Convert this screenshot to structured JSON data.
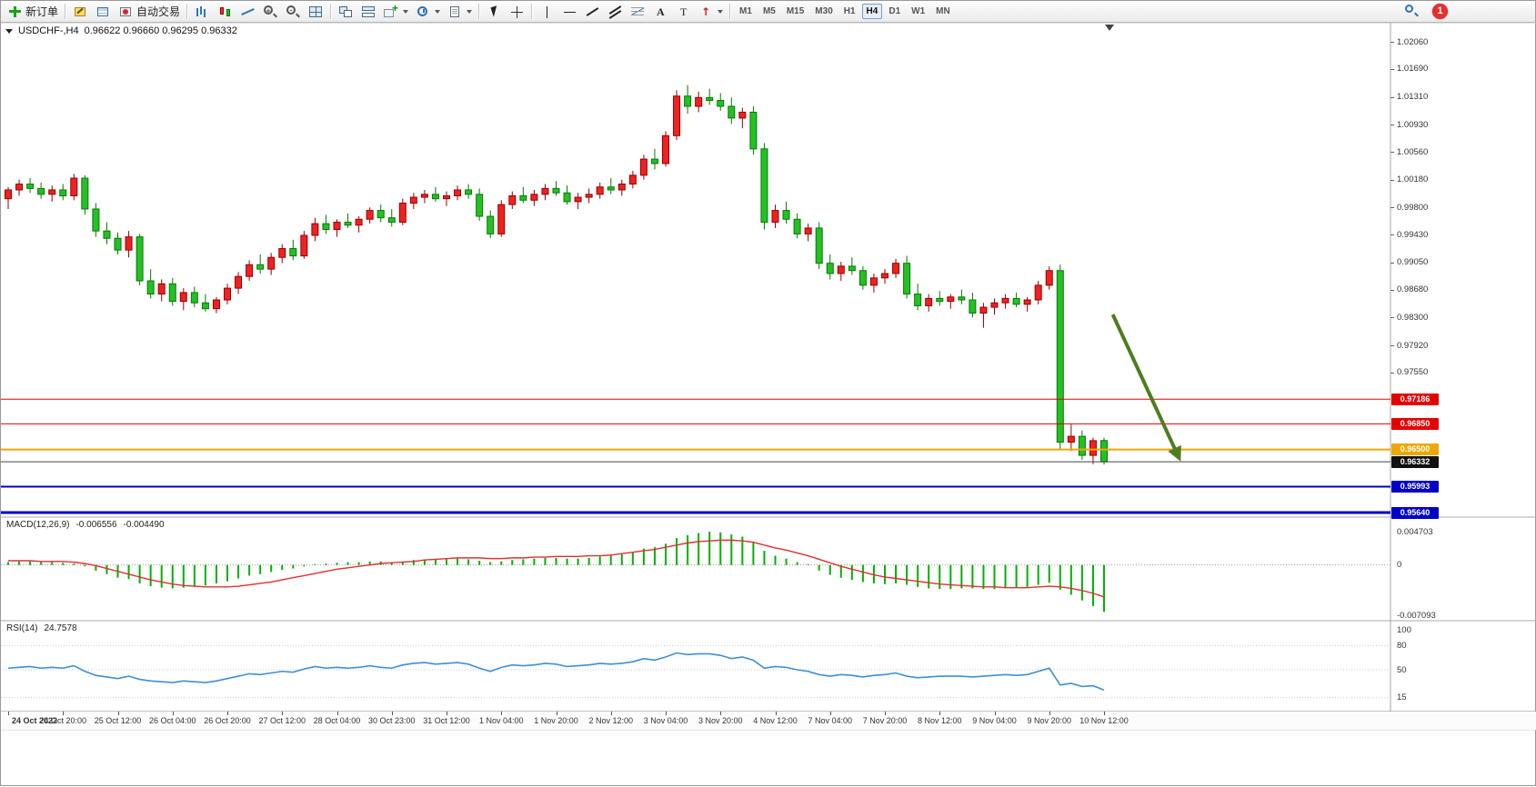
{
  "toolbar": {
    "notification_count": "1",
    "groups": [
      {
        "items": [
          {
            "name": "new-order",
            "label": "新订单",
            "icon": "neworder"
          }
        ]
      },
      {
        "items": [
          {
            "name": "metaeditor",
            "icon": "metaeditor"
          },
          {
            "name": "data-window",
            "icon": "datawindow"
          },
          {
            "name": "autotrading",
            "label": "自动交易",
            "icon": "autotrading"
          }
        ]
      },
      {
        "items": [
          {
            "name": "bar-chart",
            "icon": "barchart"
          },
          {
            "name": "candlestick-chart",
            "icon": "candle"
          },
          {
            "name": "line-chart",
            "icon": "linechart"
          },
          {
            "name": "zoom-in",
            "icon": "zoomin"
          },
          {
            "name": "zoom-out",
            "icon": "zoomout"
          },
          {
            "name": "tile-windows",
            "icon": "tile"
          }
        ]
      },
      {
        "items": [
          {
            "name": "cascade-windows",
            "icon": "cascade"
          },
          {
            "name": "arrange-charts",
            "icon": "arrange"
          },
          {
            "name": "add-indicator",
            "icon": "addind",
            "dropdown": true
          },
          {
            "name": "period-selector",
            "icon": "clock",
            "dropdown": true
          },
          {
            "name": "templates",
            "icon": "template",
            "dropdown": true
          }
        ]
      },
      {
        "items": [
          {
            "name": "cursor-tool",
            "icon": "cursor"
          },
          {
            "name": "crosshair-tool",
            "icon": "crosshair"
          }
        ]
      },
      {
        "items": [
          {
            "name": "vertical-line-tool",
            "icon": "vline"
          },
          {
            "name": "horizontal-line-tool",
            "icon": "hline"
          },
          {
            "name": "trendline-tool",
            "icon": "trend"
          },
          {
            "name": "channel-tool",
            "icon": "channel"
          },
          {
            "name": "fibonacci-tool",
            "icon": "fibo"
          },
          {
            "name": "text-tool",
            "icon": "text"
          },
          {
            "name": "label-tool",
            "icon": "label"
          },
          {
            "name": "arrows-tool",
            "icon": "arrows",
            "dropdown": true
          }
        ]
      }
    ],
    "timeframes": {
      "items": [
        "M1",
        "M5",
        "M15",
        "M30",
        "H1",
        "H4",
        "D1",
        "W1",
        "MN"
      ],
      "active": "H4"
    }
  },
  "chart_data": {
    "type": "candlestick",
    "title": "USDCHF-,H4",
    "ohlc_display": "0.96622 0.96660 0.96295 0.96332",
    "price_range": [
      0.9564,
      1.0206
    ],
    "colors": {
      "up": "#ee2222",
      "up_stroke": "#990000",
      "down": "#24c024",
      "down_stroke": "#057a05",
      "bid_line": "#444444"
    },
    "price_axis_labels": [
      "1.02060",
      "1.01690",
      "1.01310",
      "1.00930",
      "1.00560",
      "1.00180",
      "0.99800",
      "0.99430",
      "0.99050",
      "0.98680",
      "0.98300",
      "0.97920",
      "0.97550"
    ],
    "time_labels": [
      "24 Oct 2022",
      "24 Oct 20:00",
      "25 Oct 12:00",
      "26 Oct 04:00",
      "26 Oct 20:00",
      "27 Oct 12:00",
      "28 Oct 04:00",
      "30 Oct 23:00",
      "31 Oct 12:00",
      "1 Nov 04:00",
      "1 Nov 20:00",
      "2 Nov 12:00",
      "3 Nov 04:00",
      "3 Nov 20:00",
      "4 Nov 12:00",
      "7 Nov 04:00",
      "7 Nov 20:00",
      "8 Nov 12:00",
      "9 Nov 04:00",
      "9 Nov 20:00",
      "10 Nov 12:00"
    ],
    "hlines": [
      {
        "price": 0.97186,
        "label": "0.97186",
        "color": "#e60000",
        "width": 1,
        "badge": "#e60000"
      },
      {
        "price": 0.9685,
        "label": "0.96850",
        "color": "#e60000",
        "width": 1,
        "badge": "#e60000"
      },
      {
        "price": 0.965,
        "label": "0.96500",
        "color": "#efa700",
        "width": 2,
        "badge": "#efa700"
      },
      {
        "price": 0.96332,
        "label": "0.96332",
        "color": "#444444",
        "width": 1,
        "badge": "#111111"
      },
      {
        "price": 0.95993,
        "label": "0.95993",
        "color": "#0000c8",
        "width": 2,
        "badge": "#0000c8"
      },
      {
        "price": 0.9564,
        "label": "0.95640",
        "color": "#0000c8",
        "width": 3,
        "badge": "#0000c8"
      }
    ],
    "arrow_annotation": {
      "from_index": 100.8,
      "from_price": 0.9834,
      "to_index": 106.8,
      "to_price": 0.964,
      "color": "#4e7d1f"
    },
    "shift_marker_index": 100.5,
    "candles": [
      [
        0.9992,
        1.0008,
        0.9978,
        1.0004
      ],
      [
        1.0004,
        1.0018,
        0.9996,
        1.0012
      ],
      [
        1.0012,
        1.002,
        1.0,
        1.0006
      ],
      [
        1.0006,
        1.0014,
        0.9992,
        0.9998
      ],
      [
        0.9998,
        1.001,
        0.9988,
        1.0004
      ],
      [
        1.0004,
        1.0012,
        0.999,
        0.9996
      ],
      [
        0.9996,
        1.0026,
        0.999,
        1.002
      ],
      [
        1.002,
        1.0024,
        0.997,
        0.9978
      ],
      [
        0.9978,
        0.9986,
        0.994,
        0.9948
      ],
      [
        0.9948,
        0.996,
        0.993,
        0.9938
      ],
      [
        0.9938,
        0.9946,
        0.9916,
        0.9922
      ],
      [
        0.9922,
        0.9948,
        0.9912,
        0.994
      ],
      [
        0.994,
        0.9944,
        0.9874,
        0.988
      ],
      [
        0.988,
        0.9896,
        0.9856,
        0.9862
      ],
      [
        0.9862,
        0.9882,
        0.9852,
        0.9876
      ],
      [
        0.9876,
        0.9884,
        0.9846,
        0.9852
      ],
      [
        0.9852,
        0.987,
        0.984,
        0.9864
      ],
      [
        0.9864,
        0.9872,
        0.9844,
        0.985
      ],
      [
        0.985,
        0.9862,
        0.9838,
        0.9842
      ],
      [
        0.9842,
        0.9858,
        0.9836,
        0.9854
      ],
      [
        0.9854,
        0.9876,
        0.9848,
        0.987
      ],
      [
        0.987,
        0.9892,
        0.9862,
        0.9886
      ],
      [
        0.9886,
        0.9908,
        0.988,
        0.9902
      ],
      [
        0.9902,
        0.9916,
        0.989,
        0.9896
      ],
      [
        0.9896,
        0.9918,
        0.9888,
        0.9912
      ],
      [
        0.9912,
        0.993,
        0.9904,
        0.9924
      ],
      [
        0.9924,
        0.9936,
        0.9908,
        0.9914
      ],
      [
        0.9914,
        0.9948,
        0.991,
        0.9942
      ],
      [
        0.9942,
        0.9966,
        0.9934,
        0.9958
      ],
      [
        0.9958,
        0.997,
        0.9944,
        0.995
      ],
      [
        0.995,
        0.9964,
        0.994,
        0.996
      ],
      [
        0.996,
        0.9972,
        0.9952,
        0.9956
      ],
      [
        0.9956,
        0.9968,
        0.9946,
        0.9964
      ],
      [
        0.9964,
        0.998,
        0.9958,
        0.9976
      ],
      [
        0.9976,
        0.9984,
        0.996,
        0.9966
      ],
      [
        0.9966,
        0.9978,
        0.9954,
        0.996
      ],
      [
        0.996,
        0.9992,
        0.9956,
        0.9986
      ],
      [
        0.9986,
        1.0,
        0.9978,
        0.9994
      ],
      [
        0.9994,
        1.0004,
        0.9986,
        0.9998
      ],
      [
        0.9998,
        1.0008,
        0.9988,
        0.9992
      ],
      [
        0.9992,
        1.0002,
        0.9982,
        0.9996
      ],
      [
        0.9996,
        1.001,
        0.999,
        1.0004
      ],
      [
        1.0004,
        1.0012,
        0.9992,
        0.9998
      ],
      [
        0.9998,
        1.0006,
        0.9962,
        0.9968
      ],
      [
        0.9968,
        0.9976,
        0.9938,
        0.9944
      ],
      [
        0.9944,
        0.999,
        0.994,
        0.9984
      ],
      [
        0.9984,
        1.0002,
        0.9978,
        0.9996
      ],
      [
        0.9996,
        1.0008,
        0.9986,
        0.999
      ],
      [
        0.999,
        1.0004,
        0.9982,
        0.9998
      ],
      [
        0.9998,
        1.0012,
        0.999,
        1.0006
      ],
      [
        1.0006,
        1.0016,
        0.9996,
        1.0
      ],
      [
        1.0,
        1.001,
        0.9984,
        0.9988
      ],
      [
        0.9988,
        1.0,
        0.9978,
        0.9994
      ],
      [
        0.9994,
        1.0006,
        0.9986,
        0.9998
      ],
      [
        0.9998,
        1.0014,
        0.9992,
        1.0008
      ],
      [
        1.0008,
        1.002,
        0.9998,
        1.0004
      ],
      [
        1.0004,
        1.0018,
        0.9996,
        1.0012
      ],
      [
        1.0012,
        1.003,
        1.0006,
        1.0024
      ],
      [
        1.0024,
        1.0052,
        1.0018,
        1.0046
      ],
      [
        1.0046,
        1.006,
        1.0032,
        1.004
      ],
      [
        1.004,
        1.0084,
        1.0036,
        1.0078
      ],
      [
        1.0078,
        1.014,
        1.0072,
        1.0132
      ],
      [
        1.0132,
        1.0147,
        1.0108,
        1.0118
      ],
      [
        1.0118,
        1.0138,
        1.011,
        1.013
      ],
      [
        1.013,
        1.0142,
        1.012,
        1.0126
      ],
      [
        1.0126,
        1.0136,
        1.0112,
        1.0118
      ],
      [
        1.0118,
        1.013,
        1.0094,
        1.0102
      ],
      [
        1.0102,
        1.0116,
        1.0088,
        1.011
      ],
      [
        1.011,
        1.0118,
        1.0052,
        1.006
      ],
      [
        1.006,
        1.0068,
        0.995,
        0.996
      ],
      [
        0.996,
        0.9984,
        0.9952,
        0.9976
      ],
      [
        0.9976,
        0.9988,
        0.9958,
        0.9964
      ],
      [
        0.9964,
        0.9972,
        0.9938,
        0.9944
      ],
      [
        0.9944,
        0.9958,
        0.9934,
        0.9952
      ],
      [
        0.9952,
        0.996,
        0.9896,
        0.9904
      ],
      [
        0.9904,
        0.9916,
        0.9882,
        0.989
      ],
      [
        0.989,
        0.9906,
        0.988,
        0.99
      ],
      [
        0.99,
        0.9912,
        0.9888,
        0.9894
      ],
      [
        0.9894,
        0.99,
        0.9868,
        0.9874
      ],
      [
        0.9874,
        0.989,
        0.9864,
        0.9884
      ],
      [
        0.9884,
        0.9896,
        0.9876,
        0.989
      ],
      [
        0.989,
        0.991,
        0.9884,
        0.9904
      ],
      [
        0.9904,
        0.9914,
        0.9856,
        0.9862
      ],
      [
        0.9862,
        0.9876,
        0.984,
        0.9846
      ],
      [
        0.9846,
        0.9862,
        0.9838,
        0.9856
      ],
      [
        0.9856,
        0.9866,
        0.9846,
        0.9852
      ],
      [
        0.9852,
        0.9862,
        0.9842,
        0.9858
      ],
      [
        0.9858,
        0.9868,
        0.9848,
        0.9854
      ],
      [
        0.9854,
        0.9864,
        0.983,
        0.9836
      ],
      [
        0.9836,
        0.985,
        0.9816,
        0.9844
      ],
      [
        0.9844,
        0.9856,
        0.9834,
        0.985
      ],
      [
        0.985,
        0.9862,
        0.9842,
        0.9856
      ],
      [
        0.9856,
        0.9864,
        0.9844,
        0.9848
      ],
      [
        0.9848,
        0.9858,
        0.9838,
        0.9854
      ],
      [
        0.9854,
        0.988,
        0.9848,
        0.9874
      ],
      [
        0.9874,
        0.99,
        0.9868,
        0.9894
      ],
      [
        0.9894,
        0.9902,
        0.965,
        0.966
      ],
      [
        0.966,
        0.9684,
        0.9648,
        0.9668
      ],
      [
        0.9668,
        0.9676,
        0.9636,
        0.9642
      ],
      [
        0.9642,
        0.9666,
        0.963,
        0.9662
      ],
      [
        0.96622,
        0.9666,
        0.96295,
        0.96332
      ]
    ],
    "indicators": {
      "macd": {
        "label": "MACD(12,26,9)",
        "main_value": "-0.006556",
        "signal_value": "-0.004490",
        "range": [
          -0.007093,
          0.004703
        ],
        "axis_labels": [
          "0.004703",
          "0",
          "-0.007093"
        ],
        "histogram": [
          0.0004,
          0.0005,
          0.0005,
          0.0004,
          0.0004,
          0.0003,
          0.0002,
          -0.0002,
          -0.0008,
          -0.0013,
          -0.0018,
          -0.002,
          -0.0026,
          -0.003,
          -0.0032,
          -0.0033,
          -0.0032,
          -0.0031,
          -0.0029,
          -0.0026,
          -0.0023,
          -0.0019,
          -0.0015,
          -0.0013,
          -0.001,
          -0.0007,
          -0.0005,
          -0.0002,
          0.0001,
          0.0002,
          0.0003,
          0.0004,
          0.0004,
          0.0005,
          0.0005,
          0.0004,
          0.0005,
          0.0007,
          0.0008,
          0.0008,
          0.0008,
          0.0009,
          0.0008,
          0.0006,
          0.0004,
          0.0005,
          0.0007,
          0.0008,
          0.0009,
          0.001,
          0.001,
          0.0009,
          0.0009,
          0.001,
          0.0012,
          0.0013,
          0.0015,
          0.0018,
          0.0023,
          0.0025,
          0.003,
          0.0038,
          0.0042,
          0.0045,
          0.0047,
          0.0046,
          0.0043,
          0.004,
          0.0033,
          0.002,
          0.0013,
          0.0009,
          0.0004,
          -0.0001,
          -0.0008,
          -0.0014,
          -0.0018,
          -0.0021,
          -0.0024,
          -0.0026,
          -0.0027,
          -0.0026,
          -0.0028,
          -0.0031,
          -0.0033,
          -0.0034,
          -0.0034,
          -0.0033,
          -0.0033,
          -0.0034,
          -0.0034,
          -0.0033,
          -0.0032,
          -0.0031,
          -0.0028,
          -0.0025,
          -0.0035,
          -0.0042,
          -0.005,
          -0.0058,
          -0.0066
        ],
        "signal": [
          0.0006,
          0.0006,
          0.0006,
          0.0005,
          0.0005,
          0.0005,
          0.0004,
          0.0002,
          -0.0001,
          -0.0005,
          -0.0009,
          -0.0013,
          -0.0017,
          -0.0021,
          -0.0024,
          -0.0027,
          -0.0029,
          -0.003,
          -0.0031,
          -0.0031,
          -0.0031,
          -0.003,
          -0.0028,
          -0.0026,
          -0.0024,
          -0.0021,
          -0.0018,
          -0.0015,
          -0.0012,
          -0.0009,
          -0.0006,
          -0.0004,
          -0.0002,
          0.0,
          0.0002,
          0.0003,
          0.0004,
          0.0005,
          0.0007,
          0.0008,
          0.0009,
          0.001,
          0.001,
          0.001,
          0.0009,
          0.0009,
          0.001,
          0.001,
          0.0011,
          0.0011,
          0.0012,
          0.0012,
          0.0012,
          0.0013,
          0.0013,
          0.0014,
          0.0016,
          0.0018,
          0.002,
          0.0022,
          0.0025,
          0.0028,
          0.0031,
          0.0033,
          0.0034,
          0.0035,
          0.0035,
          0.0034,
          0.0032,
          0.0028,
          0.0024,
          0.0021,
          0.0017,
          0.0013,
          0.0008,
          0.0003,
          -0.0002,
          -0.0006,
          -0.001,
          -0.0014,
          -0.0017,
          -0.0019,
          -0.0021,
          -0.0023,
          -0.0025,
          -0.0027,
          -0.0028,
          -0.0029,
          -0.003,
          -0.0031,
          -0.0031,
          -0.0032,
          -0.0032,
          -0.0032,
          -0.0031,
          -0.003,
          -0.0031,
          -0.0033,
          -0.0036,
          -0.004,
          -0.0045
        ]
      },
      "rsi": {
        "label": "RSI(14)",
        "value": "24.7578",
        "range": [
          0,
          100
        ],
        "axis_labels": [
          "100",
          "80",
          "50",
          "15"
        ],
        "values": [
          52,
          53,
          54,
          52,
          53,
          52,
          55,
          48,
          43,
          41,
          39,
          42,
          38,
          36,
          35,
          34,
          36,
          35,
          34,
          36,
          39,
          42,
          45,
          44,
          46,
          48,
          47,
          51,
          54,
          52,
          53,
          52,
          53,
          55,
          53,
          52,
          56,
          58,
          59,
          57,
          58,
          59,
          57,
          52,
          48,
          53,
          56,
          55,
          56,
          58,
          57,
          54,
          55,
          56,
          58,
          57,
          58,
          60,
          64,
          62,
          66,
          71,
          69,
          70,
          70,
          68,
          64,
          66,
          62,
          52,
          54,
          53,
          50,
          48,
          44,
          42,
          44,
          43,
          41,
          43,
          44,
          46,
          42,
          40,
          41,
          42,
          42,
          42,
          41,
          42,
          43,
          44,
          43,
          44,
          48,
          52,
          31,
          33,
          29,
          30,
          24.76
        ]
      }
    }
  }
}
